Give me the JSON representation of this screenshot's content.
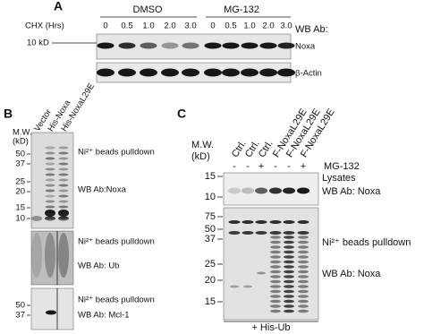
{
  "panel_a": {
    "label": "A",
    "groups": [
      "DMSO",
      "MG-132"
    ],
    "treatment_label": "CHX (Hrs)",
    "timepoints": [
      "0",
      "0.5",
      "1.0",
      "2.0",
      "3.0",
      "0",
      "0.5",
      "1.0",
      "2.0",
      "3.0"
    ],
    "antibody_label": "WB Ab:",
    "marker": "10 kD",
    "blots": [
      "Noxa",
      "β-Actin"
    ]
  },
  "panel_b": {
    "label": "B",
    "mw_label": "M.W.",
    "mw_unit": "(kD)",
    "lanes": [
      "Vector",
      "His-Noxa",
      "His-NoxaL29E"
    ],
    "blots": [
      {
        "markers": [
          "50",
          "37",
          "25",
          "20",
          "15",
          "10"
        ],
        "lines": [
          "Ni²⁺ beads pulldown",
          "WB Ab:Noxa"
        ]
      },
      {
        "lines": [
          "Ni²⁺ beads pulldown",
          "WB Ab: Ub"
        ]
      },
      {
        "markers": [
          "50",
          "37"
        ],
        "lines": [
          "Ni²⁺ beads pulldown",
          "WB Ab: Mcl-1"
        ]
      }
    ]
  },
  "panel_c": {
    "label": "C",
    "mw_label": "M.W.",
    "mw_unit": "(kD)",
    "lanes": [
      "Ctrl.",
      "Ctrl.",
      "Ctrl.",
      "F-NoxaL29E",
      "F-NoxaL29E",
      "F-NoxaL29E"
    ],
    "mg132": [
      "-",
      "-",
      "+",
      "-",
      "-",
      "+"
    ],
    "mg132_label": "MG-132",
    "blots": [
      {
        "markers": [
          "15",
          "10"
        ],
        "lines": [
          "Lysates",
          "WB Ab: Noxa"
        ]
      },
      {
        "markers": [
          "75",
          "50",
          "37",
          "25",
          "20",
          "15"
        ],
        "lines": [
          "Ni²⁺ beads pulldown",
          "WB Ab: Noxa"
        ]
      }
    ],
    "footer": "+ His-Ub"
  }
}
